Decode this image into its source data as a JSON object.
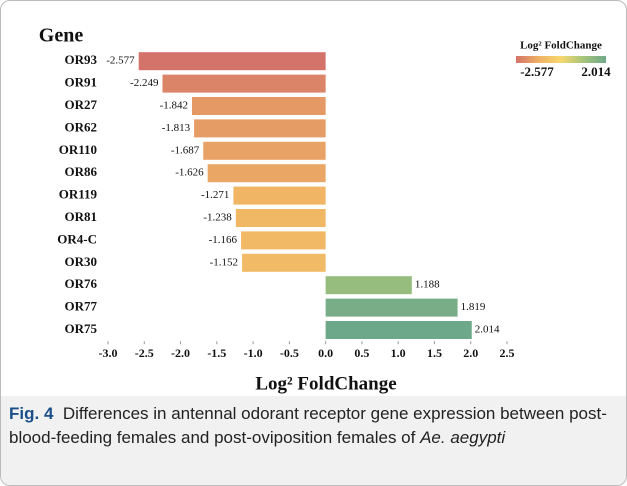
{
  "chart_data": {
    "type": "hbar",
    "y_label": "Gene",
    "x_label": "Log² FoldChange",
    "categories": [
      "OR93",
      "OR91",
      "OR27",
      "OR62",
      "OR110",
      "OR86",
      "OR119",
      "OR81",
      "OR4-C",
      "OR30",
      "OR76",
      "OR77",
      "OR75"
    ],
    "values": [
      -2.577,
      -2.249,
      -1.842,
      -1.813,
      -1.687,
      -1.626,
      -1.271,
      -1.238,
      -1.166,
      -1.152,
      1.188,
      1.819,
      2.014
    ],
    "xlim": [
      -3.0,
      2.5
    ],
    "xticks": [
      {
        "value": -3.0,
        "label": "-3.0"
      },
      -2.5,
      {
        "value": -2.0,
        "label": "-2.0"
      },
      -1.5,
      {
        "value": -1.0,
        "label": "-1.0"
      },
      -0.5,
      {
        "value": 0,
        "label": "0.0"
      },
      0.5,
      {
        "value": 1.0,
        "label": "1.0"
      },
      1.5,
      {
        "value": 2.0,
        "label": "2.0"
      },
      2.5
    ],
    "legend": {
      "title": "Log² FoldChange",
      "min": -2.577,
      "max": 2.014,
      "colors": [
        "#d4736a",
        "#efb063",
        "#f6d86f",
        "#a6c47a",
        "#6ea88a"
      ]
    }
  },
  "caption": {
    "label": "Fig. 4",
    "text": "Differences in antennal odorant receptor gene expression between post-blood-feeding females and post-oviposition females of",
    "species": "Ae. aegypti"
  }
}
